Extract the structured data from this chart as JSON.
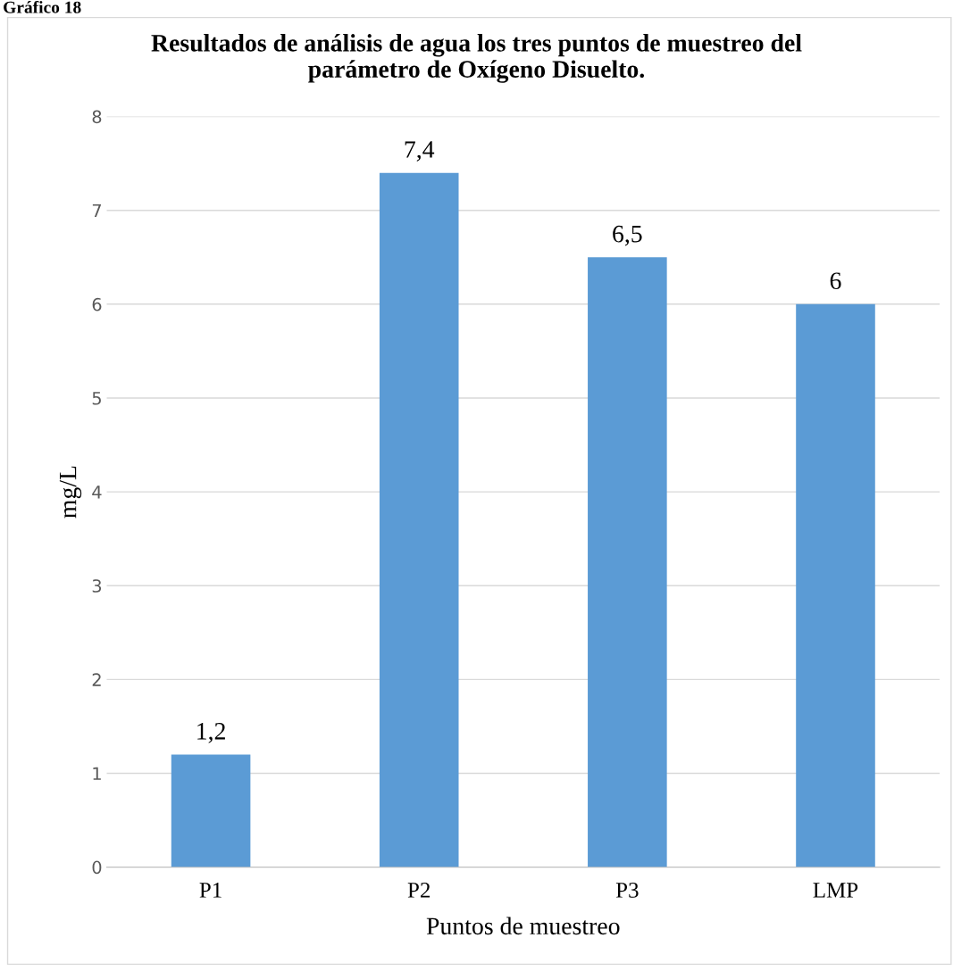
{
  "chart_data": {
    "type": "bar",
    "title": "Resultados de análisis de agua los tres puntos de muestreo del\nparámetro de Oxígeno Disuelto.",
    "xlabel": "Puntos de muestreo",
    "ylabel": "mg/L",
    "categories": [
      "P1",
      "P2",
      "P3",
      "LMP"
    ],
    "values": [
      1.2,
      7.4,
      6.5,
      6
    ],
    "color": "#5b9bd5",
    "value_labels": [
      "1,2",
      "7,4",
      "6,5",
      "6"
    ],
    "ylim": [
      0,
      8
    ],
    "yticks": [
      0,
      1,
      2,
      3,
      4,
      5,
      6,
      7,
      8
    ],
    "grid": "y",
    "annotations": [
      "Gráfico 18"
    ]
  }
}
